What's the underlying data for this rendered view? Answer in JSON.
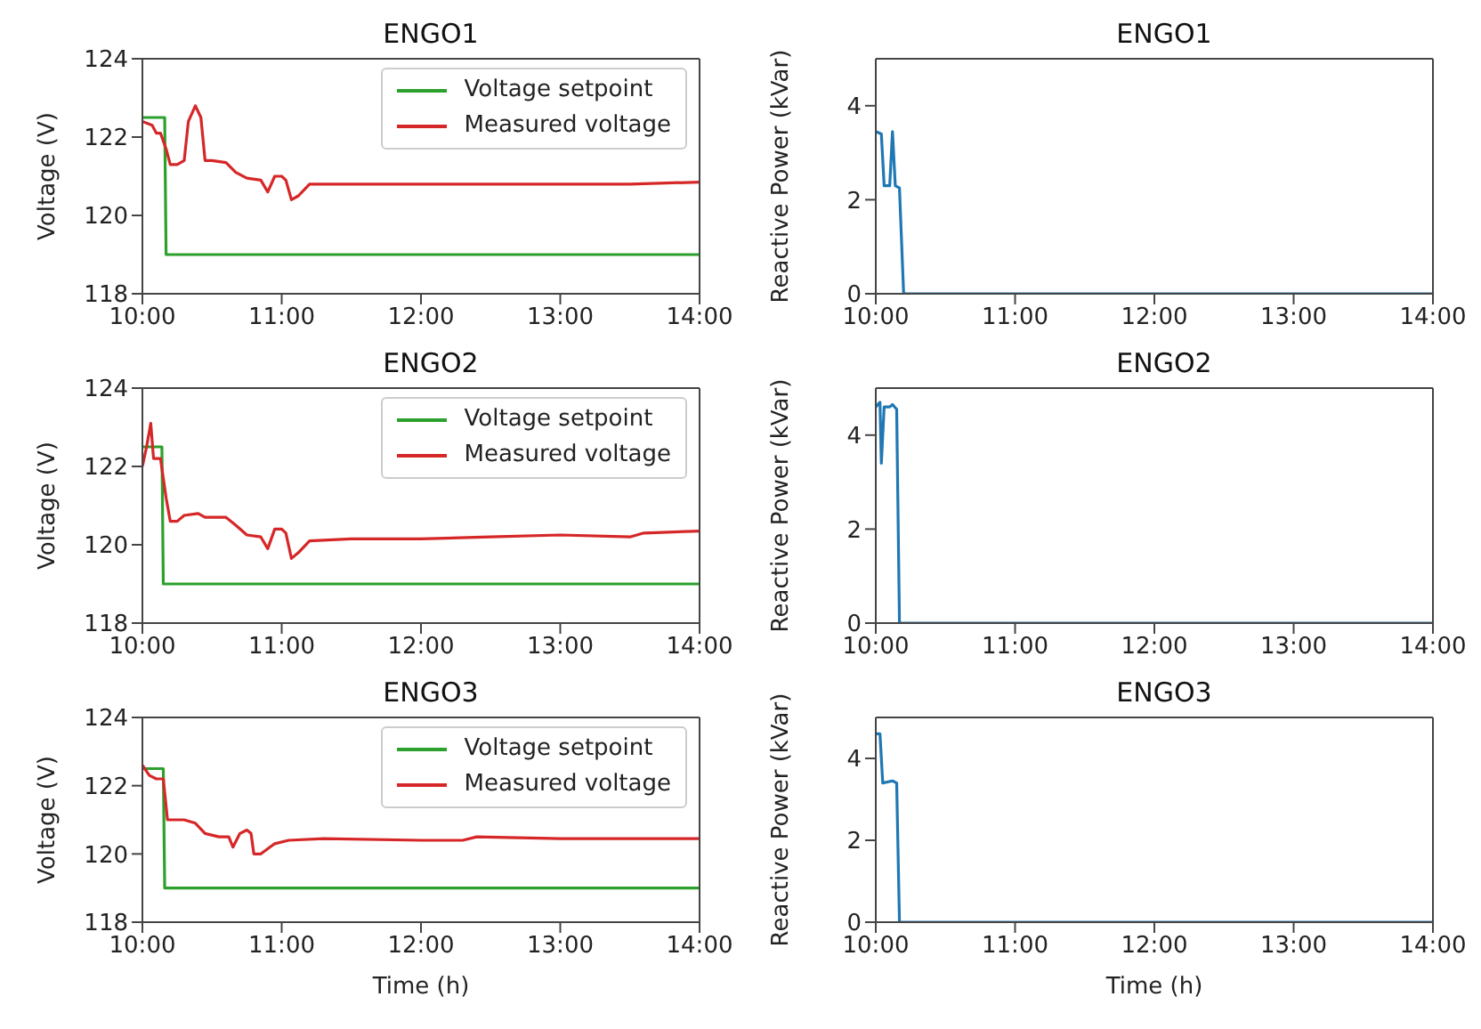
{
  "chart_data": [
    {
      "type": "line",
      "title": "ENGO1",
      "ylabel": "Voltage (V)",
      "xlim": [
        10,
        14
      ],
      "xticks": [
        {
          "value": 10,
          "label": "10:00"
        },
        {
          "value": 11,
          "label": "11:00"
        },
        {
          "value": 12,
          "label": "12:00"
        },
        {
          "value": 13,
          "label": "13:00"
        },
        {
          "value": 14,
          "label": "14:00"
        }
      ],
      "ylim": [
        118,
        124
      ],
      "yticks": [
        118,
        120,
        122,
        124
      ],
      "legend": "top right",
      "series": [
        {
          "name": "Voltage setpoint",
          "color": "#2ca02c",
          "x": [
            10,
            10.16,
            10.17,
            14
          ],
          "values": [
            122.5,
            122.5,
            119,
            119
          ]
        },
        {
          "name": "Measured voltage",
          "color": "#d62728",
          "x": [
            10,
            10.07,
            10.1,
            10.13,
            10.17,
            10.2,
            10.25,
            10.3,
            10.33,
            10.38,
            10.42,
            10.45,
            10.5,
            10.6,
            10.67,
            10.75,
            10.85,
            10.9,
            10.95,
            11,
            11.03,
            11.07,
            11.12,
            11.2,
            11.5,
            12,
            12.5,
            13,
            13.5,
            14
          ],
          "values": [
            122.4,
            122.3,
            122.1,
            122.1,
            121.7,
            121.3,
            121.3,
            121.4,
            122.4,
            122.8,
            122.5,
            121.4,
            121.4,
            121.35,
            121.1,
            120.95,
            120.9,
            120.6,
            121,
            121,
            120.9,
            120.4,
            120.5,
            120.8,
            120.8,
            120.8,
            120.8,
            120.8,
            120.8,
            120.85
          ]
        }
      ]
    },
    {
      "type": "line",
      "title": "ENGO1",
      "ylabel": "Reactive Power (kVar)",
      "xlim": [
        10,
        14
      ],
      "xticks": [
        {
          "value": 10,
          "label": "10:00"
        },
        {
          "value": 11,
          "label": "11:00"
        },
        {
          "value": 12,
          "label": "12:00"
        },
        {
          "value": 13,
          "label": "13:00"
        },
        {
          "value": 14,
          "label": "14:00"
        }
      ],
      "ylim": [
        0,
        5
      ],
      "yticks": [
        0,
        2,
        4
      ],
      "series": [
        {
          "color": "#1f77b4",
          "x": [
            10,
            10.04,
            10.06,
            10.1,
            10.12,
            10.14,
            10.17,
            10.2,
            14
          ],
          "values": [
            3.45,
            3.4,
            2.3,
            2.3,
            3.45,
            2.3,
            2.25,
            0,
            0
          ]
        }
      ]
    },
    {
      "type": "line",
      "title": "ENGO2",
      "ylabel": "Voltage (V)",
      "xlim": [
        10,
        14
      ],
      "xticks": [
        {
          "value": 10,
          "label": "10:00"
        },
        {
          "value": 11,
          "label": "11:00"
        },
        {
          "value": 12,
          "label": "12:00"
        },
        {
          "value": 13,
          "label": "13:00"
        },
        {
          "value": 14,
          "label": "14:00"
        }
      ],
      "ylim": [
        118,
        124
      ],
      "yticks": [
        118,
        120,
        122,
        124
      ],
      "legend": "top right",
      "series": [
        {
          "name": "Voltage setpoint",
          "color": "#2ca02c",
          "x": [
            10,
            10.14,
            10.15,
            14
          ],
          "values": [
            122.5,
            122.5,
            119,
            119
          ]
        },
        {
          "name": "Measured voltage",
          "color": "#d62728",
          "x": [
            10,
            10.03,
            10.06,
            10.08,
            10.13,
            10.17,
            10.2,
            10.25,
            10.3,
            10.4,
            10.45,
            10.6,
            10.67,
            10.75,
            10.85,
            10.9,
            10.95,
            11,
            11.03,
            11.07,
            11.12,
            11.2,
            11.5,
            12,
            12.5,
            13,
            13.5,
            13.6,
            14
          ],
          "values": [
            122,
            122.5,
            123.1,
            122.2,
            122.2,
            121.2,
            120.6,
            120.6,
            120.75,
            120.8,
            120.7,
            120.7,
            120.5,
            120.25,
            120.2,
            119.9,
            120.4,
            120.4,
            120.3,
            119.65,
            119.8,
            120.1,
            120.15,
            120.15,
            120.2,
            120.25,
            120.2,
            120.3,
            120.35
          ]
        }
      ]
    },
    {
      "type": "line",
      "title": "ENGO2",
      "ylabel": "Reactive Power (kVar)",
      "xlim": [
        10,
        14
      ],
      "xticks": [
        {
          "value": 10,
          "label": "10:00"
        },
        {
          "value": 11,
          "label": "11:00"
        },
        {
          "value": 12,
          "label": "12:00"
        },
        {
          "value": 13,
          "label": "13:00"
        },
        {
          "value": 14,
          "label": "14:00"
        }
      ],
      "ylim": [
        0,
        5
      ],
      "yticks": [
        0,
        2,
        4
      ],
      "series": [
        {
          "color": "#1f77b4",
          "x": [
            10,
            10.03,
            10.04,
            10.06,
            10.1,
            10.12,
            10.15,
            10.17,
            14
          ],
          "values": [
            4.6,
            4.7,
            3.4,
            4.6,
            4.6,
            4.65,
            4.55,
            0,
            0
          ]
        }
      ]
    },
    {
      "type": "line",
      "title": "ENGO3",
      "xlabel": "Time (h)",
      "ylabel": "Voltage (V)",
      "xlim": [
        10,
        14
      ],
      "xticks": [
        {
          "value": 10,
          "label": "10:00"
        },
        {
          "value": 11,
          "label": "11:00"
        },
        {
          "value": 12,
          "label": "12:00"
        },
        {
          "value": 13,
          "label": "13:00"
        },
        {
          "value": 14,
          "label": "14:00"
        }
      ],
      "ylim": [
        118,
        124
      ],
      "yticks": [
        118,
        120,
        122,
        124
      ],
      "legend": "top right",
      "series": [
        {
          "name": "Voltage setpoint",
          "color": "#2ca02c",
          "x": [
            10,
            10.15,
            10.16,
            14
          ],
          "values": [
            122.5,
            122.5,
            119,
            119
          ]
        },
        {
          "name": "Measured voltage",
          "color": "#d62728",
          "x": [
            10,
            10.05,
            10.1,
            10.15,
            10.18,
            10.3,
            10.38,
            10.45,
            10.55,
            10.62,
            10.65,
            10.7,
            10.75,
            10.78,
            10.8,
            10.85,
            10.95,
            11.05,
            11.3,
            12,
            12.3,
            12.4,
            13,
            14
          ],
          "values": [
            122.6,
            122.3,
            122.2,
            122.2,
            121,
            121,
            120.9,
            120.6,
            120.5,
            120.5,
            120.2,
            120.6,
            120.7,
            120.6,
            120,
            120,
            120.3,
            120.4,
            120.45,
            120.4,
            120.4,
            120.5,
            120.45,
            120.45
          ]
        }
      ]
    },
    {
      "type": "line",
      "title": "ENGO3",
      "xlabel": "Time (h)",
      "ylabel": "Reactive Power (kVar)",
      "xlim": [
        10,
        14
      ],
      "xticks": [
        {
          "value": 10,
          "label": "10:00"
        },
        {
          "value": 11,
          "label": "11:00"
        },
        {
          "value": 12,
          "label": "12:00"
        },
        {
          "value": 13,
          "label": "13:00"
        },
        {
          "value": 14,
          "label": "14:00"
        }
      ],
      "ylim": [
        0,
        5
      ],
      "yticks": [
        0,
        2,
        4
      ],
      "series": [
        {
          "color": "#1f77b4",
          "x": [
            10,
            10.03,
            10.05,
            10.12,
            10.15,
            10.17,
            14
          ],
          "values": [
            4.6,
            4.6,
            3.4,
            3.45,
            3.4,
            0,
            0
          ]
        }
      ]
    }
  ]
}
